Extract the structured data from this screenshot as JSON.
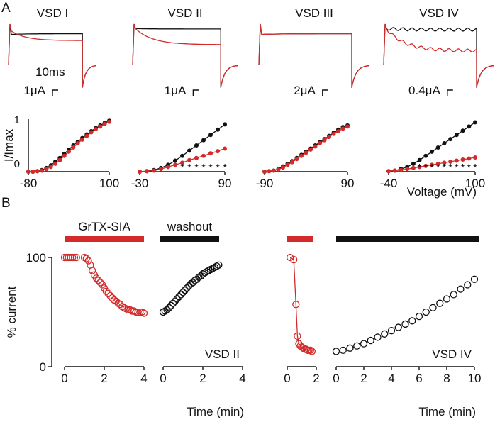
{
  "colors": {
    "control": "#111111",
    "toxin": "#d42a2a"
  },
  "panels": {
    "a": "A",
    "b": "B"
  },
  "traces": [
    {
      "title": "VSD I",
      "scale_current": "1μA",
      "scale_time": "10ms",
      "ctrl_peak": 0.78,
      "tox_peak": 0.88,
      "ctrl_ss": 0.8,
      "tox_ss": 0.6
    },
    {
      "title": "VSD II",
      "scale_current": "1μA",
      "scale_time": "",
      "ctrl_peak": 0.95,
      "tox_peak": 0.95,
      "ctrl_ss": 0.94,
      "tox_ss": 0.48
    },
    {
      "title": "VSD III",
      "scale_current": "2μA",
      "scale_time": "",
      "ctrl_peak": 0.78,
      "tox_peak": 0.78,
      "ctrl_ss": 0.8,
      "tox_ss": 0.8
    },
    {
      "title": "VSD IV",
      "scale_current": "0.4μA",
      "scale_time": "",
      "ctrl_peak": 0.95,
      "tox_peak": 0.95,
      "ctrl_ss": 0.92,
      "tox_ss": 0.3
    }
  ],
  "chart_data": [
    {
      "type": "scatter",
      "ylabel": "I/Imax",
      "xlabel": "",
      "xlim": [
        -80,
        100
      ],
      "ylim": [
        0,
        1
      ],
      "xticks": [
        "-80",
        "100"
      ],
      "yticks": [
        "0",
        "1"
      ],
      "series": [
        {
          "color": "#111111",
          "x": [
            -80,
            -70,
            -60,
            -50,
            -40,
            -30,
            -20,
            -10,
            0,
            10,
            20,
            30,
            40,
            50,
            60,
            70,
            80,
            90,
            100
          ],
          "y": [
            0,
            0,
            0.01,
            0.03,
            0.07,
            0.12,
            0.19,
            0.26,
            0.34,
            0.42,
            0.5,
            0.57,
            0.64,
            0.71,
            0.77,
            0.83,
            0.88,
            0.93,
            0.97
          ]
        },
        {
          "color": "#d42a2a",
          "x": [
            -80,
            -70,
            -60,
            -50,
            -40,
            -30,
            -20,
            -10,
            0,
            10,
            20,
            30,
            40,
            50,
            60,
            70,
            80,
            90,
            100
          ],
          "y": [
            0,
            0,
            0.01,
            0.02,
            0.05,
            0.09,
            0.15,
            0.22,
            0.3,
            0.38,
            0.46,
            0.54,
            0.61,
            0.68,
            0.75,
            0.81,
            0.86,
            0.91,
            0.95
          ]
        }
      ],
      "significance": []
    },
    {
      "type": "scatter",
      "ylabel": "",
      "xlabel": "",
      "xlim": [
        -30,
        90
      ],
      "ylim": [
        0,
        1
      ],
      "xticks": [
        "-30",
        "90"
      ],
      "yticks": [],
      "series": [
        {
          "color": "#111111",
          "x": [
            -30,
            -20,
            -10,
            0,
            10,
            20,
            30,
            40,
            50,
            60,
            70,
            80,
            90
          ],
          "y": [
            0,
            0.01,
            0.03,
            0.07,
            0.13,
            0.21,
            0.3,
            0.4,
            0.5,
            0.6,
            0.7,
            0.8,
            0.9
          ]
        },
        {
          "color": "#d42a2a",
          "x": [
            -30,
            -20,
            -10,
            0,
            10,
            20,
            30,
            40,
            50,
            60,
            70,
            80,
            90
          ],
          "y": [
            0,
            0.01,
            0.02,
            0.05,
            0.09,
            0.13,
            0.17,
            0.22,
            0.26,
            0.3,
            0.35,
            0.39,
            0.44
          ]
        }
      ],
      "significance": [
        30,
        40,
        50,
        60,
        70,
        80,
        90
      ]
    },
    {
      "type": "scatter",
      "ylabel": "",
      "xlabel": "",
      "xlim": [
        -90,
        90
      ],
      "ylim": [
        0,
        1
      ],
      "xticks": [
        "-90",
        "90"
      ],
      "yticks": [],
      "series": [
        {
          "color": "#111111",
          "x": [
            -90,
            -80,
            -70,
            -60,
            -50,
            -40,
            -30,
            -20,
            -10,
            0,
            10,
            20,
            30,
            40,
            50,
            60,
            70,
            80,
            90
          ],
          "y": [
            0,
            0.01,
            0.02,
            0.05,
            0.1,
            0.15,
            0.2,
            0.26,
            0.32,
            0.38,
            0.44,
            0.5,
            0.56,
            0.62,
            0.68,
            0.74,
            0.8,
            0.85,
            0.88
          ]
        },
        {
          "color": "#d42a2a",
          "x": [
            -90,
            -80,
            -70,
            -60,
            -50,
            -40,
            -30,
            -20,
            -10,
            0,
            10,
            20,
            30,
            40,
            50,
            60,
            70,
            80,
            90
          ],
          "y": [
            0,
            0.01,
            0.02,
            0.04,
            0.08,
            0.13,
            0.18,
            0.24,
            0.3,
            0.36,
            0.42,
            0.48,
            0.54,
            0.6,
            0.66,
            0.72,
            0.77,
            0.82,
            0.86
          ]
        }
      ],
      "significance": []
    },
    {
      "type": "scatter",
      "ylabel": "",
      "xlabel": "Voltage (mV)",
      "xlim": [
        -40,
        100
      ],
      "ylim": [
        0,
        1
      ],
      "xticks": [
        "-40",
        "100"
      ],
      "yticks": [],
      "series": [
        {
          "color": "#111111",
          "x": [
            -40,
            -30,
            -20,
            -10,
            0,
            10,
            20,
            30,
            40,
            50,
            60,
            70,
            80,
            90,
            100
          ],
          "y": [
            0.01,
            0.02,
            0.05,
            0.09,
            0.15,
            0.22,
            0.3,
            0.38,
            0.46,
            0.54,
            0.62,
            0.7,
            0.78,
            0.86,
            0.94
          ]
        },
        {
          "color": "#d42a2a",
          "x": [
            -40,
            -30,
            -20,
            -10,
            0,
            10,
            20,
            30,
            40,
            50,
            60,
            70,
            80,
            90,
            100
          ],
          "y": [
            0.01,
            0.02,
            0.03,
            0.05,
            0.07,
            0.09,
            0.11,
            0.13,
            0.15,
            0.17,
            0.19,
            0.21,
            0.23,
            0.25,
            0.27
          ]
        }
      ],
      "significance": [
        10,
        20,
        30,
        40,
        50,
        60,
        70,
        80,
        90,
        100
      ]
    },
    {
      "type": "scatter",
      "ylabel": "% current",
      "xlabel": "",
      "xlim": [
        0,
        4
      ],
      "ylim": [
        0,
        100
      ],
      "xticks": [
        "0",
        "2",
        "4"
      ],
      "yticks": [
        "0",
        "100"
      ],
      "bar_label": "GrTX-SIA",
      "series": [
        {
          "color": "#d42a2a",
          "x": [
            0,
            0.1,
            0.2,
            0.3,
            0.4,
            0.5,
            0.6,
            1.0,
            1.1,
            1.2,
            1.3,
            1.4,
            1.5,
            1.6,
            1.7,
            1.8,
            1.9,
            2.0,
            2.1,
            2.2,
            2.3,
            2.4,
            2.5,
            2.6,
            2.7,
            2.8,
            2.9,
            3.0,
            3.1,
            3.2,
            3.3,
            3.4,
            3.5,
            3.6,
            3.7,
            3.8,
            3.9,
            4.0
          ],
          "y": [
            100,
            100,
            100,
            100,
            100,
            100,
            100,
            100,
            99,
            97,
            93,
            88,
            84,
            81,
            79,
            77,
            75,
            72,
            69,
            67,
            65,
            63,
            61,
            60,
            58,
            57,
            55,
            54,
            53,
            52,
            52,
            51,
            51,
            50,
            50,
            50,
            50,
            49
          ]
        }
      ]
    },
    {
      "type": "scatter",
      "ylabel": "",
      "xlabel": "Time (min)",
      "xlim": [
        0,
        4
      ],
      "ylim": [
        0,
        100
      ],
      "xticks": [
        "0",
        "2",
        "4"
      ],
      "yticks": [],
      "bar_label": "washout",
      "annotation": "VSD II",
      "series": [
        {
          "color": "#111111",
          "x": [
            0,
            0.1,
            0.2,
            0.3,
            0.4,
            0.5,
            0.6,
            0.7,
            0.8,
            0.9,
            1.0,
            1.1,
            1.2,
            1.3,
            1.4,
            1.5,
            1.6,
            1.7,
            1.8,
            1.9,
            2.0,
            2.1,
            2.2,
            2.3,
            2.4,
            2.5,
            2.6,
            2.7,
            2.8
          ],
          "y": [
            50,
            51,
            52,
            54,
            56,
            58,
            60,
            62,
            64,
            66,
            68,
            70,
            72,
            74,
            76,
            77,
            79,
            80,
            82,
            83,
            85,
            86,
            87,
            88,
            89,
            90,
            91,
            92,
            93
          ]
        }
      ]
    },
    {
      "type": "scatter",
      "ylabel": "",
      "xlabel": "",
      "xlim": [
        0,
        2
      ],
      "ylim": [
        0,
        100
      ],
      "xticks": [
        "0",
        "2"
      ],
      "yticks": [],
      "bar_label": "",
      "series": [
        {
          "color": "#d42a2a",
          "x": [
            0.2,
            0.45,
            0.6,
            0.7,
            0.8,
            0.9,
            1.0,
            1.1,
            1.2,
            1.3,
            1.4,
            1.5,
            1.6,
            1.7
          ],
          "y": [
            100,
            98,
            57,
            28,
            21,
            19,
            18,
            17,
            16,
            16,
            15,
            15,
            15,
            14
          ]
        }
      ]
    },
    {
      "type": "scatter",
      "ylabel": "",
      "xlabel": "Time (min)",
      "xlim": [
        0,
        10
      ],
      "ylim": [
        0,
        100
      ],
      "xticks": [
        "0",
        "2",
        "4",
        "6",
        "8",
        "10"
      ],
      "yticks": [],
      "bar_label": "",
      "annotation": "VSD IV",
      "series": [
        {
          "color": "#111111",
          "x": [
            0,
            0.5,
            1,
            1.5,
            2,
            2.5,
            3,
            3.5,
            4,
            4.5,
            5,
            5.5,
            6,
            6.5,
            7,
            7.5,
            8,
            8.5,
            9,
            9.5,
            10
          ],
          "y": [
            14,
            15,
            17,
            19,
            21,
            24,
            27,
            30,
            33,
            36,
            39,
            42,
            46,
            50,
            54,
            58,
            62,
            66,
            71,
            75,
            80
          ]
        }
      ]
    }
  ]
}
